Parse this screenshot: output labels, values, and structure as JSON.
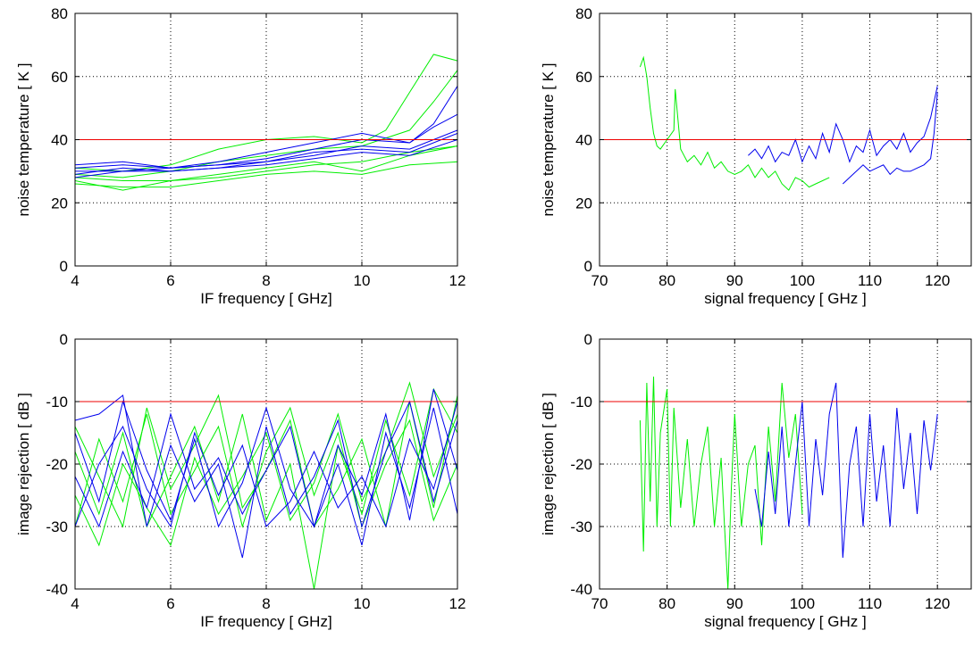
{
  "chart_data": [
    {
      "type": "line",
      "xlabel": "IF frequency [ GHz]",
      "ylabel": "noise temperature [ K ]",
      "xlim": [
        4,
        12
      ],
      "ylim": [
        0,
        80
      ],
      "xticks": [
        4,
        6,
        8,
        10,
        12
      ],
      "yticks": [
        0,
        20,
        40,
        60,
        80
      ],
      "grid": true,
      "colors": {
        "green": "#00ee00",
        "blue": "#0000ee",
        "reference": "#ee0000"
      },
      "reference_line": 40,
      "series": [
        {
          "color": "green",
          "x": [
            4,
            5,
            6,
            7,
            8,
            9,
            10,
            10.5,
            11,
            11.5,
            12
          ],
          "y": [
            31,
            30,
            32,
            37,
            40,
            41,
            39,
            43,
            55,
            67,
            65
          ]
        },
        {
          "color": "green",
          "x": [
            4,
            5,
            6,
            7,
            8,
            9,
            10,
            11,
            11.5,
            12
          ],
          "y": [
            29,
            28,
            30,
            33,
            35,
            37,
            38,
            43,
            52,
            62
          ]
        },
        {
          "color": "green",
          "x": [
            4,
            5,
            6,
            7,
            8,
            9,
            10,
            11,
            12
          ],
          "y": [
            27,
            24,
            27,
            29,
            31,
            33,
            30,
            35,
            38
          ]
        },
        {
          "color": "green",
          "x": [
            4,
            5,
            6,
            7,
            8,
            9,
            10,
            11,
            12
          ],
          "y": [
            26,
            25,
            25,
            27,
            29,
            30,
            29,
            32,
            33
          ]
        },
        {
          "color": "green",
          "x": [
            4,
            5,
            6,
            7,
            8,
            9,
            10,
            11,
            12
          ],
          "y": [
            28,
            27,
            27,
            28,
            30,
            32,
            33,
            36,
            38
          ]
        },
        {
          "color": "blue",
          "x": [
            4,
            5,
            6,
            7,
            8,
            9,
            10,
            11,
            11.5,
            12
          ],
          "y": [
            30,
            30,
            31,
            33,
            36,
            39,
            42,
            39,
            45,
            57
          ]
        },
        {
          "color": "blue",
          "x": [
            4,
            5,
            6,
            7,
            8,
            9,
            10,
            11,
            11.5,
            12
          ],
          "y": [
            32,
            33,
            31,
            32,
            34,
            37,
            40,
            39,
            44,
            48
          ]
        },
        {
          "color": "blue",
          "x": [
            4,
            5,
            6,
            7,
            8,
            9,
            10,
            11,
            12
          ],
          "y": [
            29,
            31,
            30,
            31,
            33,
            35,
            38,
            37,
            43
          ]
        },
        {
          "color": "blue",
          "x": [
            4,
            5,
            6,
            7,
            8,
            9,
            10,
            11,
            12
          ],
          "y": [
            28,
            30,
            30,
            31,
            32,
            34,
            36,
            35,
            40
          ]
        },
        {
          "color": "blue",
          "x": [
            4,
            5,
            6,
            7,
            8,
            9,
            10,
            11,
            12
          ],
          "y": [
            31,
            32,
            31,
            32,
            33,
            36,
            37,
            36,
            42
          ]
        }
      ]
    },
    {
      "type": "line",
      "xlabel": "signal frequency [ GHz ]",
      "ylabel": "noise temperature [ K ]",
      "xlim": [
        70,
        125
      ],
      "ylim": [
        0,
        80
      ],
      "xticks": [
        70,
        80,
        90,
        100,
        110,
        120
      ],
      "yticks": [
        0,
        20,
        40,
        60,
        80
      ],
      "grid": true,
      "colors": {
        "green": "#00ee00",
        "blue": "#0000ee",
        "reference": "#ee0000"
      },
      "reference_line": 40,
      "series": [
        {
          "color": "green",
          "x": [
            76,
            76.5,
            77,
            77.5,
            78,
            78.5,
            79,
            80,
            81,
            81.2,
            82,
            83,
            84,
            85,
            86,
            87,
            88,
            89,
            90,
            91,
            92,
            93,
            94,
            95,
            96,
            97,
            98,
            99,
            100,
            101,
            102,
            103,
            104
          ],
          "y": [
            63,
            66,
            60,
            50,
            42,
            38,
            37,
            40,
            43,
            56,
            37,
            33,
            35,
            32,
            36,
            31,
            33,
            30,
            29,
            30,
            32,
            28,
            31,
            28,
            30,
            26,
            24,
            28,
            27,
            25,
            26,
            27,
            28
          ]
        },
        {
          "color": "blue",
          "x": [
            92,
            93,
            94,
            95,
            96,
            97,
            98,
            99,
            100,
            101,
            102,
            103,
            104,
            105,
            106,
            107,
            108,
            109,
            110,
            111,
            112,
            113,
            114,
            115,
            116,
            117,
            118,
            119,
            120
          ],
          "y": [
            35,
            37,
            34,
            38,
            33,
            36,
            35,
            40,
            33,
            38,
            34,
            42,
            36,
            45,
            40,
            33,
            38,
            36,
            43,
            35,
            38,
            40,
            37,
            42,
            36,
            39,
            41,
            47,
            57
          ]
        },
        {
          "color": "blue",
          "x": [
            106,
            107,
            108,
            109,
            110,
            111,
            112,
            113,
            114,
            115,
            116,
            117,
            118,
            119,
            119.5,
            120
          ],
          "y": [
            26,
            28,
            30,
            32,
            30,
            31,
            32,
            29,
            31,
            30,
            30,
            31,
            32,
            34,
            42,
            55
          ]
        }
      ]
    },
    {
      "type": "line",
      "xlabel": "IF frequency [ GHz]",
      "ylabel": "image rejection [ dB ]",
      "xlim": [
        4,
        12
      ],
      "ylim": [
        -40,
        0
      ],
      "xticks": [
        4,
        6,
        8,
        10,
        12
      ],
      "yticks": [
        -40,
        -30,
        -20,
        -10,
        0
      ],
      "grid": true,
      "colors": {
        "green": "#00ee00",
        "blue": "#0000ee",
        "reference": "#ee0000"
      },
      "reference_line": -10,
      "series": [
        {
          "color": "green",
          "x": [
            4,
            4.5,
            5,
            5.5,
            6,
            6.5,
            7,
            7.5,
            8,
            8.5,
            9,
            9.5,
            10,
            10.5,
            11,
            11.5,
            12
          ],
          "y": [
            -18,
            -28,
            -15,
            -30,
            -22,
            -14,
            -26,
            -12,
            -29,
            -20,
            -40,
            -17,
            -28,
            -13,
            -25,
            -8,
            -15
          ]
        },
        {
          "color": "green",
          "x": [
            4,
            4.5,
            5,
            5.5,
            6,
            6.5,
            7,
            7.5,
            8,
            8.5,
            9,
            9.5,
            10,
            10.5,
            11,
            11.5,
            12
          ],
          "y": [
            -25,
            -33,
            -20,
            -27,
            -33,
            -19,
            -28,
            -22,
            -15,
            -29,
            -23,
            -12,
            -26,
            -18,
            -7,
            -22,
            -12
          ]
        },
        {
          "color": "green",
          "x": [
            4,
            4.5,
            5,
            5.5,
            6,
            6.5,
            7,
            7.5,
            8,
            8.5,
            9,
            9.5,
            10,
            10.5,
            11,
            11.5,
            12
          ],
          "y": [
            -14,
            -22,
            -30,
            -11,
            -24,
            -17,
            -9,
            -27,
            -21,
            -13,
            -30,
            -24,
            -16,
            -30,
            -10,
            -27,
            -9
          ]
        },
        {
          "color": "green",
          "x": [
            4,
            4.5,
            5,
            5.5,
            6,
            6.5,
            7,
            7.5,
            8,
            8.5,
            9,
            9.5,
            10,
            10.5,
            11,
            11.5,
            12
          ],
          "y": [
            -30,
            -16,
            -26,
            -12,
            -28,
            -21,
            -14,
            -30,
            -18,
            -11,
            -25,
            -15,
            -30,
            -20,
            -13,
            -29,
            -20
          ]
        },
        {
          "color": "blue",
          "x": [
            4,
            4.5,
            5,
            5.5,
            6,
            6.5,
            7,
            7.5,
            8,
            8.5,
            9,
            9.5,
            10,
            10.5,
            11,
            11.5,
            12
          ],
          "y": [
            -13,
            -12,
            -9,
            -30,
            -17,
            -26,
            -20,
            -35,
            -14,
            -28,
            -22,
            -13,
            -30,
            -18,
            -10,
            -26,
            -13
          ]
        },
        {
          "color": "blue",
          "x": [
            4,
            4.5,
            5,
            5.5,
            6,
            6.5,
            7,
            7.5,
            8,
            8.5,
            9,
            9.5,
            10,
            10.5,
            11,
            11.5,
            12
          ],
          "y": [
            -15,
            -26,
            -10,
            -21,
            -29,
            -16,
            -30,
            -23,
            -11,
            -24,
            -30,
            -17,
            -25,
            -12,
            -29,
            -8,
            -21
          ]
        },
        {
          "color": "blue",
          "x": [
            4,
            4.5,
            5,
            5.5,
            6,
            6.5,
            7,
            7.5,
            8,
            8.5,
            9,
            9.5,
            10,
            10.5,
            11,
            11.5,
            12
          ],
          "y": [
            -22,
            -30,
            -18,
            -27,
            -12,
            -24,
            -19,
            -28,
            -21,
            -14,
            -30,
            -20,
            -33,
            -15,
            -27,
            -11,
            -28
          ]
        },
        {
          "color": "blue",
          "x": [
            4,
            4.5,
            5,
            5.5,
            6,
            6.5,
            7,
            7.5,
            8,
            8.5,
            9,
            9.5,
            10,
            10.5,
            11,
            11.5,
            12
          ],
          "y": [
            -30,
            -20,
            -14,
            -24,
            -30,
            -15,
            -25,
            -17,
            -30,
            -26,
            -18,
            -27,
            -22,
            -30,
            -16,
            -24,
            -10
          ]
        }
      ]
    },
    {
      "type": "line",
      "xlabel": "signal frequency [ GHz ]",
      "ylabel": "image rejection [ dB ]",
      "xlim": [
        70,
        125
      ],
      "ylim": [
        -40,
        0
      ],
      "xticks": [
        70,
        80,
        90,
        100,
        110,
        120
      ],
      "yticks": [
        -40,
        -30,
        -20,
        -10,
        0
      ],
      "grid": true,
      "colors": {
        "green": "#00ee00",
        "blue": "#0000ee",
        "reference": "#ee0000"
      },
      "reference_line": -10,
      "series": [
        {
          "color": "green",
          "x": [
            76,
            76.5,
            77,
            77.5,
            78,
            78.5,
            79,
            80,
            80.5,
            81,
            82,
            83,
            84,
            85,
            86,
            87,
            88,
            88.5,
            89,
            89.5,
            90,
            91,
            92,
            93,
            94,
            95,
            96,
            97,
            98,
            99,
            100
          ],
          "y": [
            -13,
            -34,
            -7,
            -26,
            -6,
            -30,
            -15,
            -8,
            -30,
            -11,
            -27,
            -16,
            -30,
            -20,
            -14,
            -30,
            -19,
            -30,
            -40,
            -24,
            -12,
            -30,
            -20,
            -17,
            -33,
            -14,
            -26,
            -7,
            -19,
            -12,
            -28
          ]
        },
        {
          "color": "blue",
          "x": [
            93,
            94,
            95,
            96,
            97,
            98,
            99,
            100,
            101,
            102,
            103,
            104,
            105,
            106,
            107,
            108,
            109,
            110,
            111,
            112,
            113,
            114,
            115,
            116,
            117,
            118,
            119,
            120
          ],
          "y": [
            -24,
            -30,
            -18,
            -28,
            -14,
            -30,
            -20,
            -10,
            -30,
            -16,
            -25,
            -12,
            -7,
            -35,
            -20,
            -14,
            -30,
            -12,
            -26,
            -17,
            -30,
            -11,
            -24,
            -15,
            -28,
            -13,
            -21,
            -12
          ]
        }
      ]
    }
  ]
}
